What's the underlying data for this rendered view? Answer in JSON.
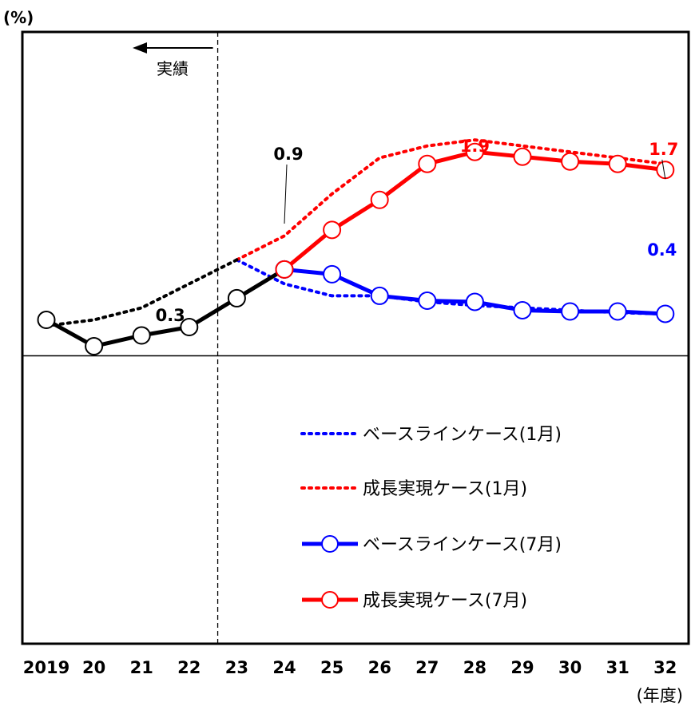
{
  "chart_data": {
    "type": "line",
    "ylabel": "(%)",
    "xunit": "(年度)",
    "categories": [
      "2019",
      "20",
      "21",
      "22",
      "23",
      "24",
      "25",
      "26",
      "27",
      "28",
      "29",
      "30",
      "31",
      "32"
    ],
    "ylim": [
      -2.4,
      2.7
    ],
    "grid": false,
    "split_after": "22",
    "split_label": "実績",
    "series": [
      {
        "name": "ベースラインケース(1月)",
        "color": "#0000ff",
        "style": "dotted",
        "x": [
          "23",
          "24",
          "25",
          "26",
          "27",
          "28",
          "29",
          "30",
          "31",
          "32"
        ],
        "values": [
          0.8,
          0.6,
          0.5,
          0.5,
          0.45,
          0.42,
          0.4,
          0.38,
          0.36,
          0.35
        ]
      },
      {
        "name": "成長実現ケース(1月)",
        "color": "#ff0000",
        "style": "dotted",
        "x": [
          "23",
          "24",
          "25",
          "26",
          "27",
          "28",
          "29",
          "30",
          "31",
          "32"
        ],
        "values": [
          0.8,
          1.0,
          1.35,
          1.65,
          1.75,
          1.8,
          1.75,
          1.7,
          1.65,
          1.6
        ]
      },
      {
        "name": "",
        "color": "#000000",
        "style": "dotted",
        "x": [
          "2019",
          "20",
          "21",
          "22",
          "23"
        ],
        "values": [
          0.25,
          0.3,
          0.4,
          0.6,
          0.8
        ]
      },
      {
        "name": "",
        "color": "#000000",
        "style": "solid",
        "x": [
          "2019",
          "20",
          "21",
          "22",
          "23",
          "24"
        ],
        "values": [
          0.3,
          0.08,
          0.17,
          0.24,
          0.48,
          0.72
        ]
      },
      {
        "name": "ベースラインケース(7月)",
        "color": "#0000ff",
        "style": "solid",
        "x": [
          "24",
          "25",
          "26",
          "27",
          "28",
          "29",
          "30",
          "31",
          "32"
        ],
        "values": [
          0.72,
          0.68,
          0.5,
          0.46,
          0.45,
          0.38,
          0.37,
          0.37,
          0.35
        ]
      },
      {
        "name": "成長実現ケース(7月)",
        "color": "#ff0000",
        "style": "solid",
        "x": [
          "24",
          "25",
          "26",
          "27",
          "28",
          "29",
          "30",
          "31",
          "32"
        ],
        "values": [
          0.72,
          1.05,
          1.3,
          1.6,
          1.7,
          1.66,
          1.62,
          1.6,
          1.55
        ]
      }
    ],
    "data_labels": [
      {
        "text": "0.3",
        "x": "22",
        "color": "#000000"
      },
      {
        "text": "0.9",
        "x": "24",
        "color": "#000000"
      },
      {
        "text": "1.9",
        "x": "28",
        "color": "#ff0000"
      },
      {
        "text": "1.7",
        "x": "32",
        "color": "#ff0000"
      },
      {
        "text": "0.4",
        "x": "32",
        "color": "#0000ff"
      }
    ]
  }
}
